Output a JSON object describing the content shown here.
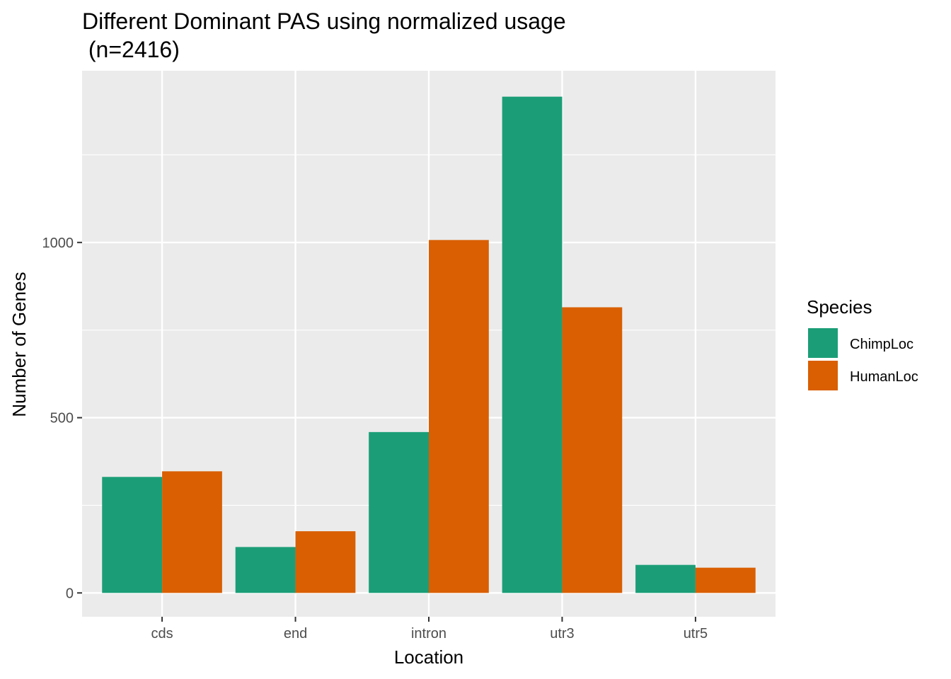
{
  "chart_data": {
    "type": "bar",
    "title": "Different Dominant PAS using normalized usage",
    "subtitle": " (n=2416)",
    "xlabel": "Location",
    "ylabel": "Number of Genes",
    "categories": [
      "cds",
      "end",
      "intron",
      "utr3",
      "utr5"
    ],
    "series": [
      {
        "name": "ChimpLoc",
        "color": "#1B9E77",
        "values": [
          331,
          131,
          459,
          1416,
          80
        ]
      },
      {
        "name": "HumanLoc",
        "color": "#D95F02",
        "values": [
          347,
          176,
          1007,
          815,
          72
        ]
      }
    ],
    "ylim": [
      -68,
      1490
    ],
    "yticks": [
      0,
      500,
      1000
    ],
    "ytick_labels": [
      "0",
      "500",
      "1000"
    ],
    "grid": true,
    "panel_background": "#EBEBEB",
    "legend": {
      "title": "Species",
      "position": "right"
    }
  }
}
